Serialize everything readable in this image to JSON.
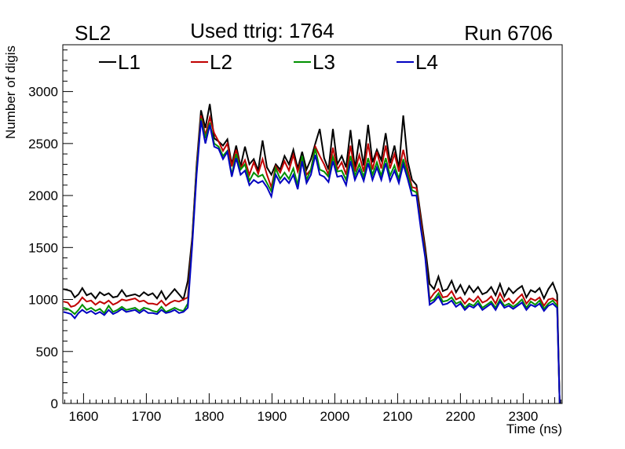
{
  "chart_data": {
    "type": "line",
    "title_left": "SL2",
    "title_center": "Used ttrig: 1764",
    "title_right": "Run 6706",
    "xlabel": "Time (ns)",
    "ylabel": "Number of digis",
    "xlim": [
      1567,
      2362
    ],
    "ylim": [
      0,
      3450
    ],
    "x_major_ticks": [
      1600,
      1700,
      1800,
      1900,
      2000,
      2100,
      2200,
      2300
    ],
    "x_tick_labels": [
      "1600",
      "1700",
      "1800",
      "1900",
      "2000",
      "2100",
      "2200",
      "2300"
    ],
    "y_major_ticks": [
      0,
      500,
      1000,
      1500,
      2000,
      2500,
      3000
    ],
    "y_tick_labels": [
      "0",
      "500",
      "1000",
      "1500",
      "2000",
      "2500",
      "3000"
    ],
    "legend_position": "top-left, horizontal",
    "x": [
      1568,
      1575,
      1580,
      1586,
      1592,
      1598,
      1605,
      1612,
      1619,
      1626,
      1633,
      1640,
      1647,
      1654,
      1661,
      1668,
      1675,
      1682,
      1689,
      1696,
      1703,
      1710,
      1717,
      1724,
      1731,
      1738,
      1745,
      1752,
      1759,
      1766,
      1773,
      1780,
      1787,
      1794,
      1801,
      1808,
      1815,
      1822,
      1829,
      1836,
      1843,
      1850,
      1857,
      1864,
      1871,
      1878,
      1885,
      1892,
      1899,
      1906,
      1913,
      1920,
      1927,
      1934,
      1941,
      1948,
      1955,
      1962,
      1969,
      1976,
      1983,
      1990,
      1997,
      2004,
      2011,
      2018,
      2025,
      2032,
      2039,
      2046,
      2053,
      2060,
      2067,
      2074,
      2081,
      2088,
      2095,
      2102,
      2109,
      2116,
      2123,
      2130,
      2137,
      2144,
      2151,
      2158,
      2165,
      2172,
      2179,
      2186,
      2193,
      2200,
      2207,
      2214,
      2221,
      2228,
      2235,
      2242,
      2249,
      2256,
      2263,
      2270,
      2277,
      2284,
      2291,
      2298,
      2305,
      2312,
      2319,
      2326,
      2333,
      2340,
      2347,
      2354,
      2358
    ],
    "series": [
      {
        "name": "L1",
        "color": "#000000",
        "values": [
          1100,
          1090,
          1080,
          1020,
          1050,
          1110,
          1040,
          1060,
          1010,
          1070,
          1040,
          1060,
          1020,
          1030,
          1090,
          1030,
          1040,
          1050,
          1030,
          1070,
          1040,
          1060,
          1010,
          1080,
          1000,
          1050,
          1100,
          1050,
          1000,
          1180,
          1600,
          2300,
          2820,
          2650,
          2880,
          2550,
          2520,
          2480,
          2540,
          2300,
          2480,
          2280,
          2470,
          2300,
          2350,
          2240,
          2530,
          2270,
          2200,
          2300,
          2250,
          2380,
          2300,
          2440,
          2260,
          2420,
          2250,
          2350,
          2500,
          2640,
          2360,
          2250,
          2640,
          2300,
          2380,
          2270,
          2630,
          2260,
          2540,
          2290,
          2680,
          2320,
          2440,
          2340,
          2600,
          2310,
          2480,
          2260,
          2770,
          2330,
          2150,
          2100,
          1800,
          1500,
          1150,
          1100,
          1220,
          1080,
          1100,
          1180,
          1070,
          1140,
          1050,
          1130,
          1070,
          1120,
          1050,
          1070,
          1120,
          1040,
          1150,
          1030,
          1110,
          1060,
          1100,
          1130,
          1020,
          1090,
          1070,
          1110,
          1010,
          1100,
          1160,
          1050,
          0
        ]
      },
      {
        "name": "L2",
        "color": "#c00000",
        "values": [
          980,
          970,
          930,
          940,
          970,
          1020,
          980,
          990,
          950,
          980,
          960,
          990,
          950,
          970,
          1000,
          990,
          1000,
          1010,
          980,
          990,
          960,
          960,
          950,
          990,
          940,
          970,
          990,
          980,
          1000,
          1020,
          1580,
          2280,
          2770,
          2580,
          2750,
          2600,
          2520,
          2430,
          2500,
          2280,
          2440,
          2260,
          2340,
          2200,
          2320,
          2210,
          2350,
          2200,
          2080,
          2280,
          2220,
          2330,
          2240,
          2390,
          2230,
          2360,
          2200,
          2250,
          2470,
          2380,
          2300,
          2200,
          2460,
          2250,
          2320,
          2200,
          2480,
          2230,
          2390,
          2230,
          2500,
          2250,
          2420,
          2260,
          2480,
          2260,
          2400,
          2230,
          2440,
          2250,
          2080,
          2070,
          1750,
          1450,
          1000,
          1060,
          1100,
          1020,
          1030,
          1080,
          1000,
          1020,
          960,
          1010,
          980,
          1030,
          970,
          990,
          1030,
          960,
          1060,
          980,
          1010,
          960,
          1010,
          1050,
          960,
          1010,
          990,
          1020,
          940,
          1000,
          1010,
          980,
          0
        ]
      },
      {
        "name": "L3",
        "color": "#009000",
        "values": [
          920,
          910,
          890,
          860,
          900,
          950,
          900,
          920,
          890,
          910,
          870,
          940,
          880,
          900,
          930,
          900,
          910,
          920,
          890,
          920,
          910,
          890,
          880,
          930,
          880,
          900,
          920,
          900,
          890,
          960,
          1550,
          2250,
          2740,
          2550,
          2700,
          2500,
          2470,
          2380,
          2430,
          2200,
          2400,
          2250,
          2300,
          2140,
          2220,
          2180,
          2200,
          2120,
          2040,
          2260,
          2160,
          2220,
          2160,
          2260,
          2100,
          2380,
          2150,
          2250,
          2450,
          2250,
          2230,
          2180,
          2370,
          2230,
          2240,
          2150,
          2380,
          2190,
          2300,
          2180,
          2360,
          2200,
          2320,
          2190,
          2360,
          2190,
          2290,
          2160,
          2350,
          2200,
          2050,
          2030,
          1700,
          1420,
          980,
          1000,
          1060,
          980,
          990,
          1020,
          960,
          980,
          920,
          960,
          940,
          990,
          920,
          950,
          980,
          920,
          1000,
          940,
          960,
          930,
          960,
          1000,
          920,
          980,
          950,
          990,
          910,
          960,
          990,
          940,
          0
        ]
      },
      {
        "name": "L4",
        "color": "#0000c0",
        "values": [
          880,
          870,
          860,
          820,
          870,
          900,
          870,
          890,
          860,
          880,
          850,
          900,
          860,
          880,
          910,
          880,
          890,
          900,
          870,
          900,
          870,
          870,
          860,
          900,
          870,
          880,
          900,
          870,
          880,
          920,
          1520,
          2200,
          2720,
          2500,
          2680,
          2470,
          2450,
          2350,
          2420,
          2180,
          2360,
          2200,
          2240,
          2100,
          2150,
          2120,
          2140,
          2080,
          1990,
          2200,
          2120,
          2170,
          2120,
          2200,
          2060,
          2330,
          2120,
          2200,
          2390,
          2200,
          2180,
          2130,
          2330,
          2180,
          2190,
          2100,
          2330,
          2150,
          2250,
          2140,
          2310,
          2150,
          2270,
          2150,
          2310,
          2140,
          2240,
          2120,
          2300,
          2160,
          2000,
          2000,
          1680,
          1400,
          950,
          980,
          1030,
          950,
          960,
          990,
          930,
          960,
          900,
          940,
          920,
          960,
          900,
          930,
          960,
          900,
          980,
          920,
          940,
          910,
          940,
          970,
          900,
          950,
          930,
          960,
          890,
          940,
          960,
          920,
          0
        ]
      }
    ]
  }
}
